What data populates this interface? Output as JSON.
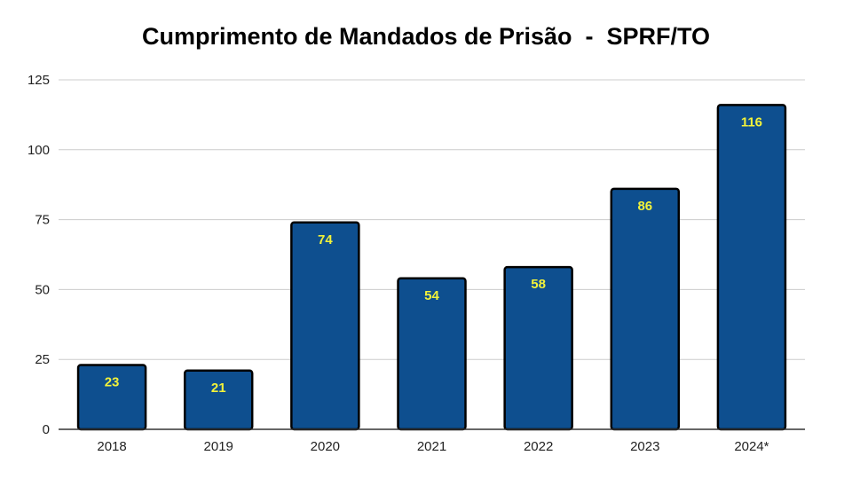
{
  "chart_data": {
    "type": "bar",
    "title": "Cumprimento de Mandados de Prisão  -  SPRF/TO",
    "xlabel": "",
    "ylabel": "",
    "categories": [
      "2018",
      "2019",
      "2020",
      "2021",
      "2022",
      "2023",
      "2024*"
    ],
    "values": [
      23,
      21,
      74,
      54,
      58,
      86,
      116
    ],
    "data_labels": [
      "23",
      "21",
      "74",
      "54",
      "58",
      "86",
      "116"
    ],
    "ylim": [
      0,
      125
    ],
    "yticks": [
      0,
      25,
      50,
      75,
      100,
      125
    ],
    "ytick_labels": [
      "0",
      "25",
      "50",
      "75",
      "100",
      "125"
    ],
    "grid": true,
    "legend": "none",
    "colors": {
      "bar_fill": "#0e4f8f",
      "bar_stroke": "#000000",
      "data_label": "#f2f23a",
      "grid": "#cccccc",
      "axis": "#333333"
    }
  }
}
